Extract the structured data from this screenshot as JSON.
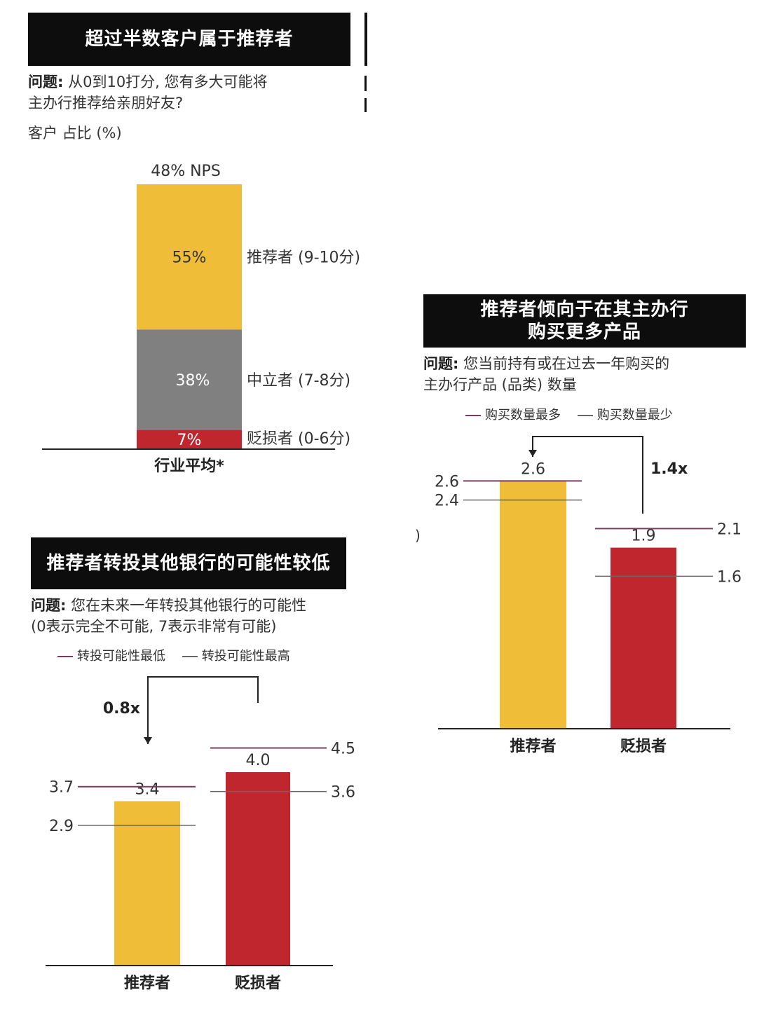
{
  "colors": {
    "promoter": "#f0bd38",
    "passive": "#808080",
    "detractor": "#c0262d",
    "range_high": "#7a3b5e",
    "range_low": "#666666",
    "title_bg": "#0d0d0d"
  },
  "chart_data": [
    {
      "type": "bar",
      "stacked": true,
      "title": "超过半数客户属于推荐者",
      "question_label": "问题:",
      "question_text": "从0到10打分, 您有多大可能将\n主办行推荐给亲朋好友?",
      "unit": "客户 占比 (%)",
      "top_label": "48% NPS",
      "categories": [
        "行业平均*"
      ],
      "segments": [
        {
          "name": "推荐者 (9-10分)",
          "value": 55,
          "label": "55%",
          "color": "#f0bd38"
        },
        {
          "name": "中立者 (7-8分)",
          "value": 38,
          "label": "38%",
          "color": "#808080"
        },
        {
          "name": "贬损者 (0-6分)",
          "value": 7,
          "label": "7%",
          "color": "#c0262d"
        }
      ]
    },
    {
      "type": "bar",
      "title": "推荐者转投其他银行的可能性较低",
      "question_label": "问题:",
      "question_text": "您在未来一年转投其他银行的可能性\n(0表示完全不可能, 7表示非常有可能)",
      "legend": [
        "转投可能性最低",
        "转投可能性最高"
      ],
      "categories": [
        "推荐者",
        "贬损者"
      ],
      "values": [
        3.4,
        4.0
      ],
      "ranges": [
        {
          "upper": 3.7,
          "lower": 2.9
        },
        {
          "upper": 4.5,
          "lower": 3.6
        }
      ],
      "ratio_label": "0.8x",
      "ylim": [
        0,
        5
      ]
    },
    {
      "type": "bar",
      "title": "推荐者倾向于在其主办行\n购买更多产品",
      "question_label": "问题:",
      "question_text": "您当前持有或在过去一年购买的\n主办行产品 (品类) 数量",
      "legend": [
        "购买数量最多",
        "购买数量最少"
      ],
      "categories": [
        "推荐者",
        "贬损者"
      ],
      "values": [
        2.6,
        1.9
      ],
      "ranges": [
        {
          "upper": 2.6,
          "lower": 2.4
        },
        {
          "upper": 2.1,
          "lower": 1.6
        }
      ],
      "ratio_label": "1.4x",
      "ylim": [
        0,
        3.2
      ]
    }
  ],
  "fragment": {
    "paren": ")"
  }
}
